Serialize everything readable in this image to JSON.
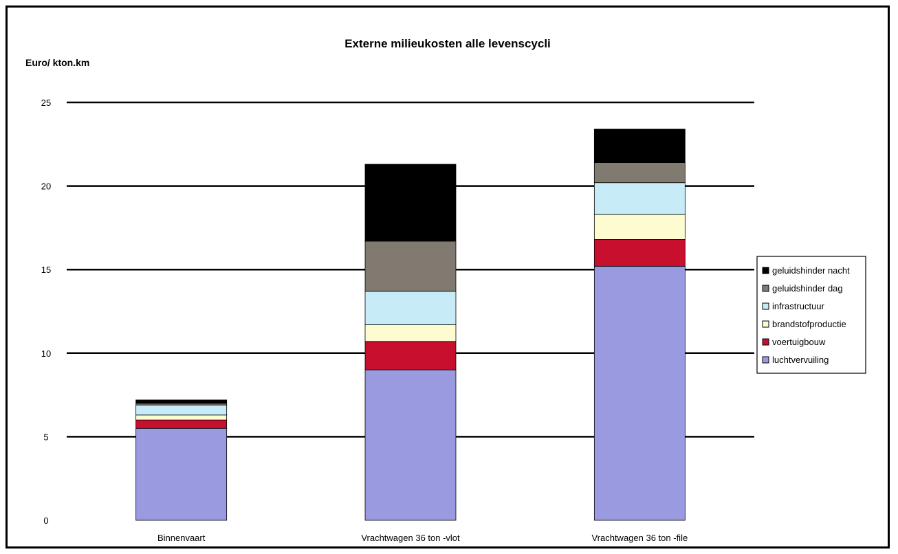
{
  "chart_data": {
    "type": "bar",
    "stacked": true,
    "title": "Externe milieukosten alle levenscycli",
    "ylabel": "Euro/ kton.km",
    "xlabel": "",
    "ylim": [
      0,
      25
    ],
    "yticks": [
      0,
      5,
      10,
      15,
      20,
      25
    ],
    "grid": true,
    "legend_position": "right",
    "categories": [
      "Binnenvaart",
      "Vrachtwagen  36 ton -vlot",
      "Vrachtwagen  36 ton -file"
    ],
    "series": [
      {
        "name": "luchtvervuiling",
        "color": "#9a9ae0",
        "values": [
          5.5,
          9.0,
          15.2
        ]
      },
      {
        "name": "voertuigbouw",
        "color": "#c8102e",
        "values": [
          0.5,
          1.7,
          1.6
        ]
      },
      {
        "name": "brandstofproductie",
        "color": "#fdfbd0",
        "values": [
          0.3,
          1.0,
          1.5
        ]
      },
      {
        "name": "infrastructuur",
        "color": "#c8ecf7",
        "values": [
          0.6,
          2.0,
          1.9
        ]
      },
      {
        "name": "geluidshinder dag",
        "color": "#807a70",
        "values": [
          0.1,
          3.0,
          1.2
        ]
      },
      {
        "name": "geluidshinder nacht",
        "color": "#000000",
        "values": [
          0.2,
          4.6,
          2.0
        ]
      }
    ]
  }
}
